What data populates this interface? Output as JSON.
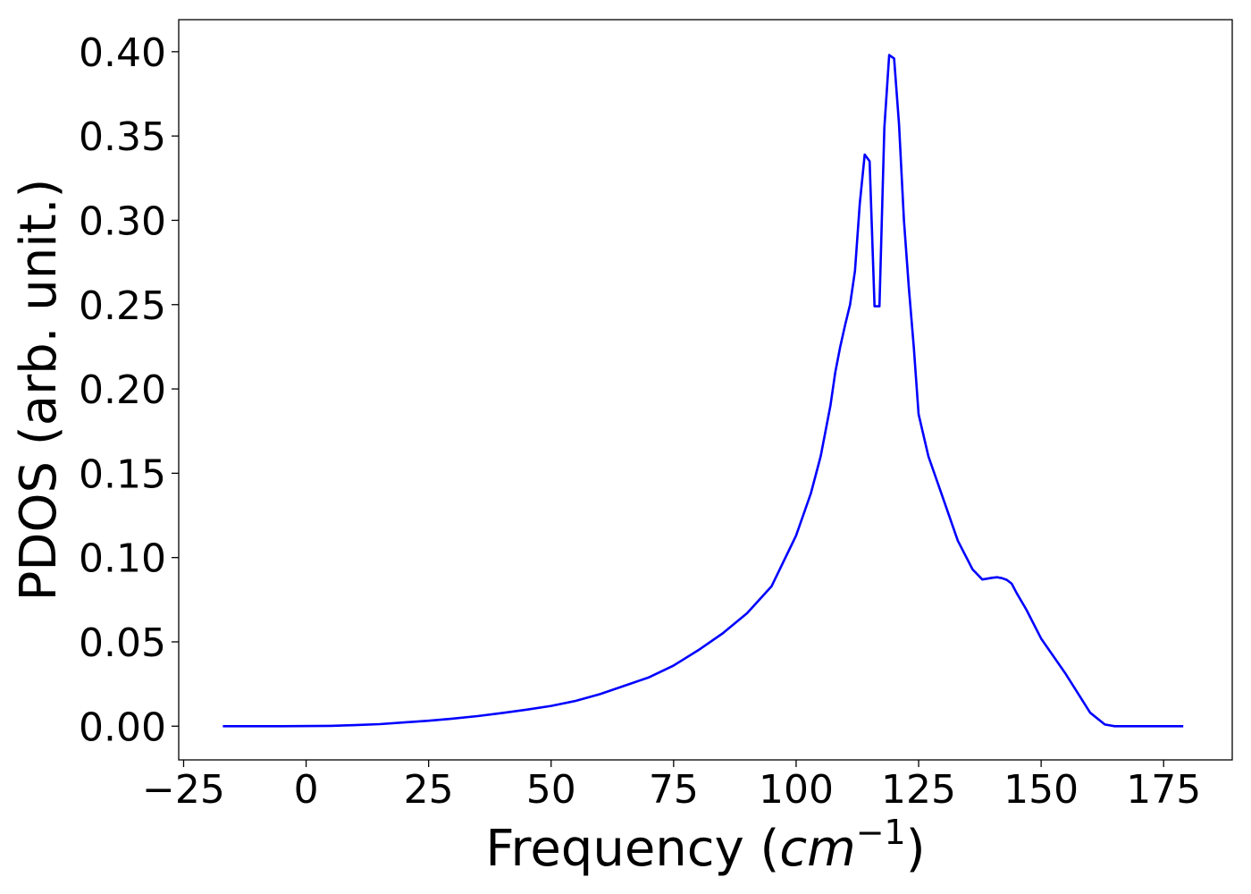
{
  "chart_data": {
    "type": "line",
    "xlabel": "Frequency (",
    "xlabel_math": "cm",
    "xlabel_exp": "−1",
    "xlabel_close": ")",
    "ylabel": "PDOS (arb. unit.)",
    "xlim": [
      -26,
      189
    ],
    "ylim": [
      -0.02,
      0.419
    ],
    "grid": false,
    "legend": "none",
    "line_color": "#0000ff",
    "axes_color": "#000000",
    "x_ticks": [
      {
        "value": -25,
        "label": "−25"
      },
      {
        "value": 0,
        "label": "0"
      },
      {
        "value": 25,
        "label": "25"
      },
      {
        "value": 50,
        "label": "50"
      },
      {
        "value": 75,
        "label": "75"
      },
      {
        "value": 100,
        "label": "100"
      },
      {
        "value": 125,
        "label": "125"
      },
      {
        "value": 150,
        "label": "150"
      },
      {
        "value": 175,
        "label": "175"
      }
    ],
    "y_ticks": [
      {
        "value": 0.0,
        "label": "0.00"
      },
      {
        "value": 0.05,
        "label": "0.05"
      },
      {
        "value": 0.1,
        "label": "0.10"
      },
      {
        "value": 0.15,
        "label": "0.15"
      },
      {
        "value": 0.2,
        "label": "0.20"
      },
      {
        "value": 0.25,
        "label": "0.25"
      },
      {
        "value": 0.3,
        "label": "0.30"
      },
      {
        "value": 0.35,
        "label": "0.35"
      },
      {
        "value": 0.4,
        "label": "0.40"
      }
    ],
    "series": [
      {
        "x": [
          -17,
          -5,
          5,
          10,
          15,
          20,
          25,
          30,
          35,
          40,
          45,
          50,
          55,
          60,
          65,
          70,
          75,
          80,
          85,
          90,
          95,
          100,
          103,
          105,
          107,
          108,
          109,
          110,
          111,
          112,
          113,
          114,
          115,
          116,
          117,
          118,
          119,
          120,
          121,
          122,
          123,
          124,
          125,
          127,
          130,
          133,
          136,
          138,
          140,
          141,
          142,
          143,
          144,
          145,
          147,
          150,
          155,
          160,
          163,
          165,
          168,
          172,
          179
        ],
        "y": [
          0.0,
          0.0,
          0.0002,
          0.0006,
          0.0012,
          0.0022,
          0.0032,
          0.0045,
          0.006,
          0.0078,
          0.0098,
          0.012,
          0.015,
          0.019,
          0.024,
          0.029,
          0.036,
          0.045,
          0.055,
          0.067,
          0.083,
          0.113,
          0.138,
          0.16,
          0.19,
          0.21,
          0.225,
          0.238,
          0.25,
          0.27,
          0.31,
          0.339,
          0.335,
          0.249,
          0.249,
          0.355,
          0.398,
          0.396,
          0.357,
          0.3,
          0.26,
          0.225,
          0.185,
          0.16,
          0.135,
          0.11,
          0.093,
          0.087,
          0.088,
          0.0883,
          0.0878,
          0.0868,
          0.0845,
          0.079,
          0.069,
          0.052,
          0.031,
          0.008,
          0.001,
          0.0,
          0.0,
          0.0,
          0.0
        ]
      }
    ]
  }
}
